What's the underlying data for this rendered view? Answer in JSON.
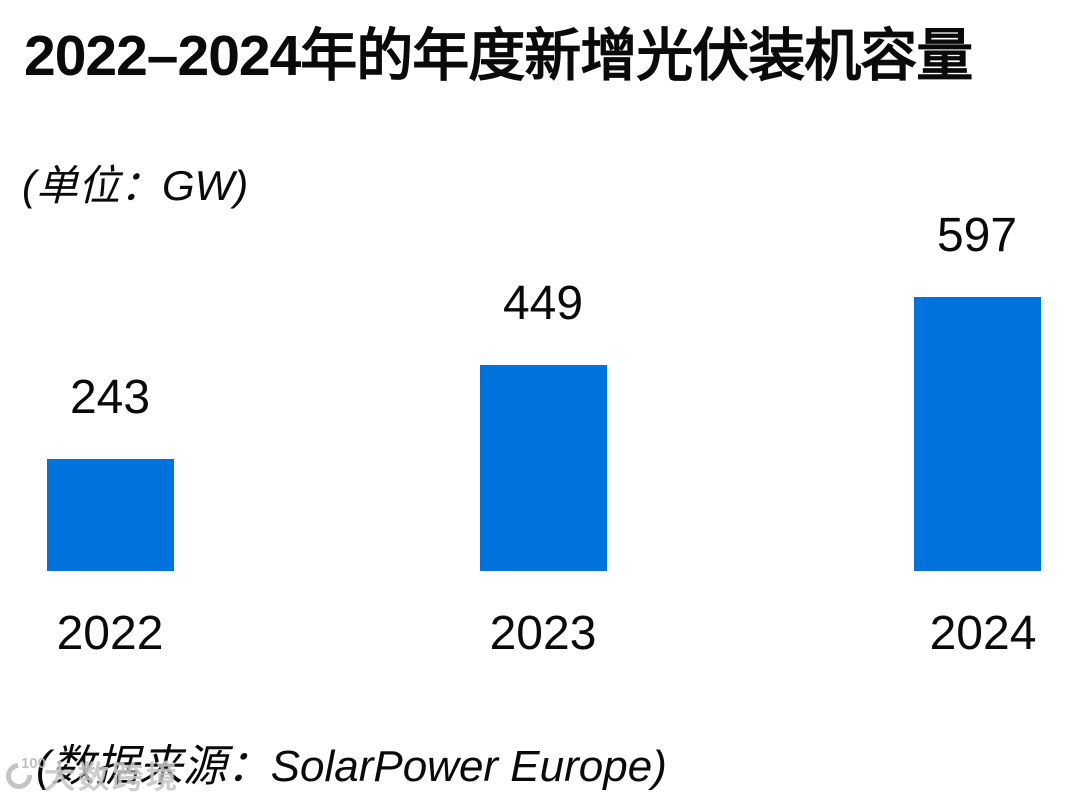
{
  "chart_data": {
    "type": "bar",
    "title": "2022–2024年的年度新增光伏装机容量",
    "unit_label": "(单位：GW)",
    "categories": [
      "2022",
      "2023",
      "2024"
    ],
    "values": [
      243,
      449,
      597
    ],
    "ylabel": "GW",
    "ylim": [
      0,
      650
    ],
    "grid": false,
    "legend": false,
    "bar_color": "#0072DC",
    "source": "(数据来源：SolarPower Europe)"
  },
  "watermark": {
    "logo": "100",
    "text": "大数跨境"
  }
}
